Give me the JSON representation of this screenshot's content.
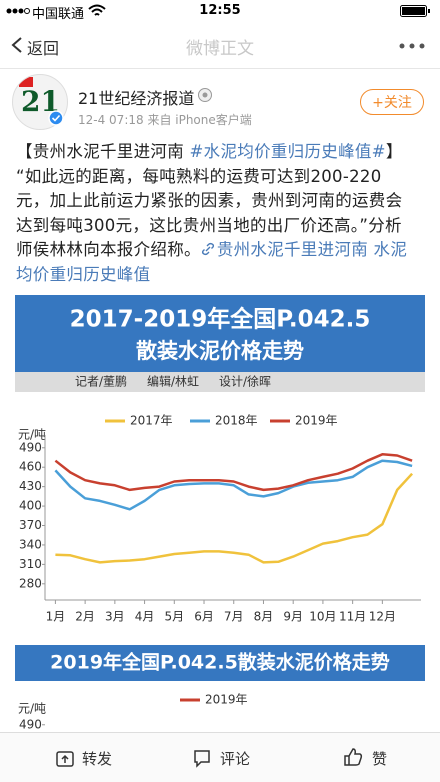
{
  "status_bar": {
    "carrier": "中国联通",
    "time": "12:55"
  },
  "nav": {
    "back": "返回",
    "title": "微博正文"
  },
  "post": {
    "author": "21世纪经济报道",
    "avatar_text": "21",
    "meta": "12-4 07:18  来自 iPhone客户端",
    "follow": "+关注",
    "lines": [
      [
        {
          "text": "【贵州水泥千里进河南 "
        },
        {
          "text": "#水泥均价重归历史峰值#",
          "link": true
        },
        {
          "text": "】"
        }
      ],
      [
        {
          "text": "“如此远的距离，每吨熟料的运费可达到200-220"
        }
      ],
      [
        {
          "text": "元，加上此前运力紧张的因素，贵州到河南的运费会"
        }
      ],
      [
        {
          "text": "达到每吨300元，这比贵州当地的出厂价还高。”分析"
        }
      ],
      [
        {
          "text": "师侯林林向本报介绍称。"
        },
        {
          "text": "贵州水泥千里进河南 水泥",
          "link": true,
          "icon": true
        }
      ],
      [
        {
          "text": "均价重归历史峰值",
          "link": true
        }
      ]
    ]
  },
  "chart_data": [
    {
      "type": "line",
      "title": "2017-2019年全国P.042.5",
      "subtitle": "散装水泥价格走势",
      "credits": [
        "记者/董鹏",
        "编辑/林虹",
        "设计/徐晖"
      ],
      "y_label": "元/吨",
      "x": [
        1,
        1.5,
        2,
        2.5,
        3,
        3.5,
        4,
        4.5,
        5,
        5.5,
        6,
        6.5,
        7,
        7.5,
        8,
        8.5,
        9,
        9.5,
        10,
        10.5,
        11,
        11.5,
        12,
        12.5,
        13
      ],
      "xlim": [
        0.65,
        13.3
      ],
      "xticks": [
        {
          "value": 1,
          "label": "1月"
        },
        {
          "value": 2,
          "label": "2月"
        },
        {
          "value": 3,
          "label": "3月"
        },
        {
          "value": 4,
          "label": "4月"
        },
        {
          "value": 5,
          "label": "5月"
        },
        {
          "value": 6,
          "label": "6月"
        },
        {
          "value": 7,
          "label": "7月"
        },
        {
          "value": 8,
          "label": "8月"
        },
        {
          "value": 9,
          "label": "9月"
        },
        {
          "value": 10,
          "label": "10月"
        },
        {
          "value": 11,
          "label": "11月"
        },
        {
          "value": 12,
          "label": "12月"
        }
      ],
      "ylim": [
        255,
        502
      ],
      "yticks": [
        280,
        310,
        340,
        370,
        400,
        430,
        460,
        490
      ],
      "series": [
        {
          "name": "2017年",
          "color": "#f0c23c",
          "values": [
            325,
            324,
            318,
            313,
            315,
            316,
            318,
            322,
            326,
            328,
            330,
            330,
            328,
            325,
            313,
            314,
            322,
            332,
            342,
            346,
            352,
            356,
            372,
            425,
            450
          ]
        },
        {
          "name": "2018年",
          "color": "#4a9fd8",
          "values": [
            455,
            430,
            412,
            408,
            402,
            395,
            408,
            425,
            432,
            434,
            435,
            435,
            432,
            418,
            415,
            420,
            430,
            436,
            438,
            440,
            445,
            460,
            470,
            468,
            462
          ]
        },
        {
          "name": "2019年",
          "color": "#c8402f",
          "values": [
            470,
            452,
            440,
            435,
            432,
            425,
            428,
            430,
            438,
            440,
            440,
            440,
            438,
            430,
            425,
            427,
            432,
            440,
            445,
            450,
            458,
            470,
            480,
            478,
            470
          ]
        }
      ]
    },
    {
      "type": "line",
      "title": "2019年全国P.042.5散装水泥价格走势",
      "y_label": "元/吨",
      "ylim": [
        255,
        502
      ],
      "yticks": [
        490
      ],
      "series": [
        {
          "name": "2019年",
          "color": "#c8402f"
        }
      ]
    }
  ],
  "actions": {
    "repost": "转发",
    "comment": "评论",
    "like": "赞"
  }
}
